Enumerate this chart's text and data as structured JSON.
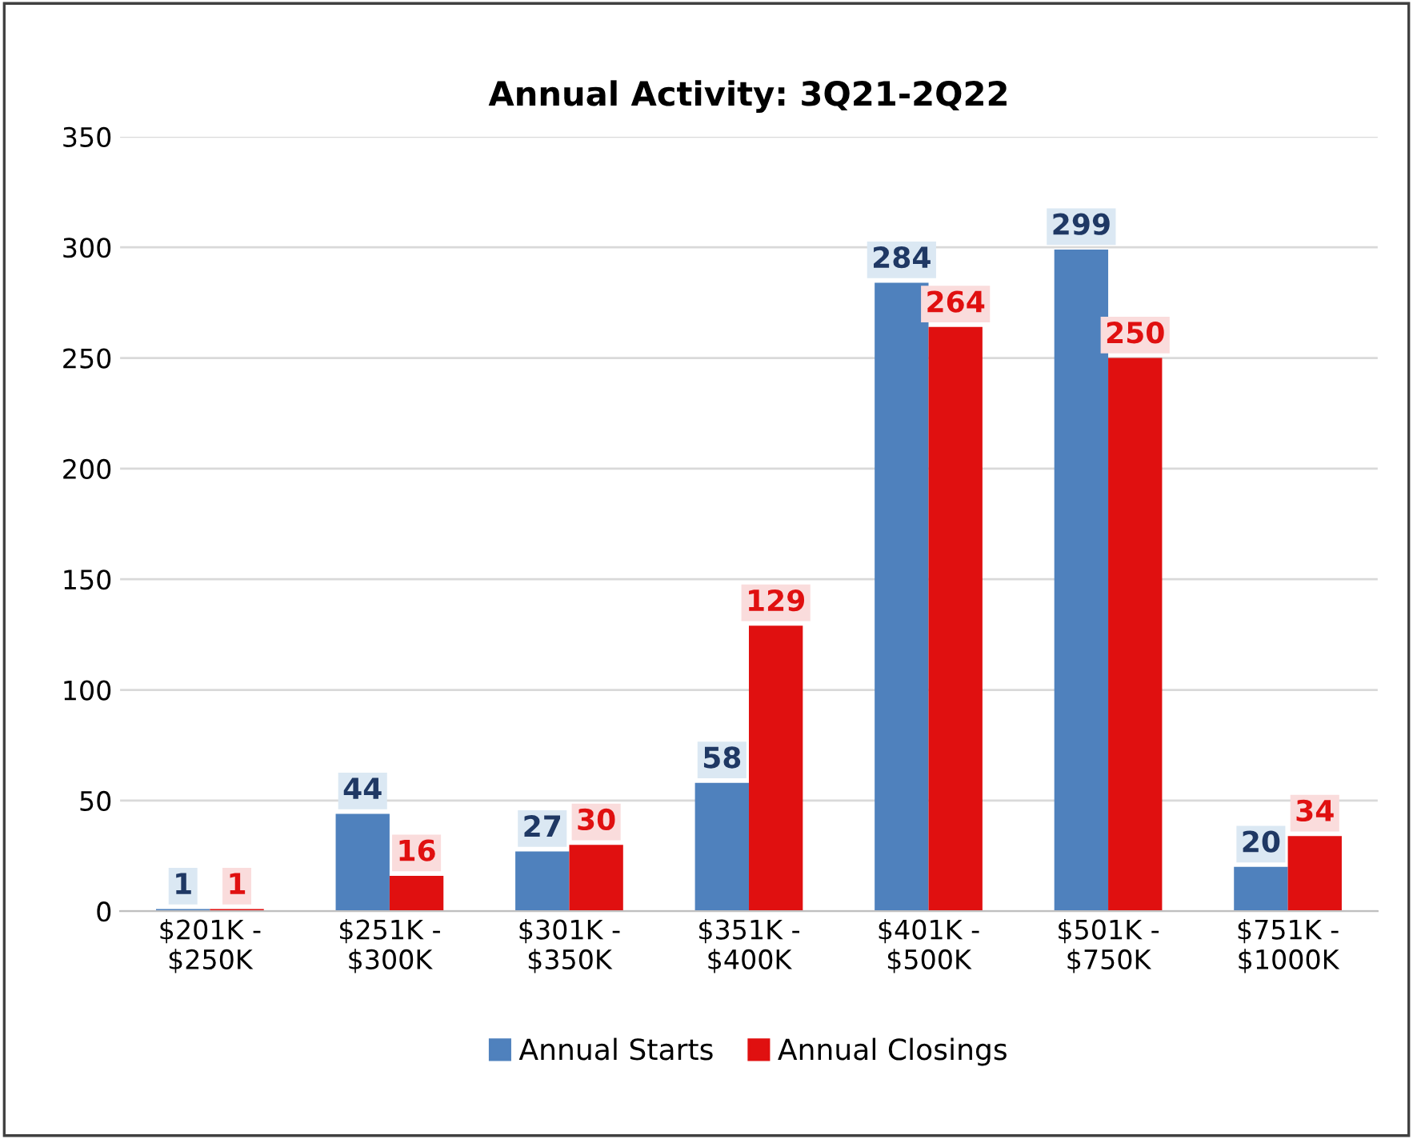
{
  "chart_data": {
    "type": "bar",
    "title": "Annual Activity: 3Q21-2Q22",
    "categories": [
      "$201K -\n$250K",
      "$251K -\n$300K",
      "$301K -\n$350K",
      "$351K -\n$400K",
      "$401K -\n$500K",
      "$501K -\n$750K",
      "$751K -\n$1000K"
    ],
    "series": [
      {
        "name": "Annual Starts",
        "color": "#4f81bd",
        "values": [
          1,
          44,
          27,
          58,
          284,
          299,
          20
        ]
      },
      {
        "name": "Annual Closings",
        "color": "#e01010",
        "values": [
          1,
          16,
          30,
          129,
          264,
          250,
          34
        ]
      }
    ],
    "ylim": [
      0,
      350
    ],
    "yticks": [
      0,
      50,
      100,
      150,
      200,
      250,
      300,
      350
    ],
    "grid": "y",
    "legend": "bottom",
    "data_labels": true
  }
}
